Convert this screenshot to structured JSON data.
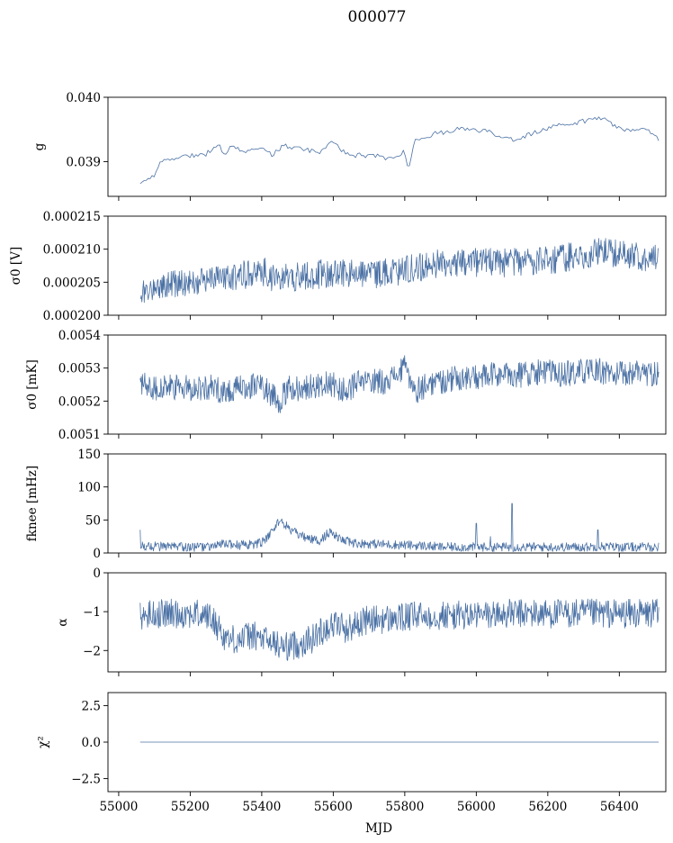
{
  "figure": {
    "title": "000077",
    "xlabel": "MJD"
  },
  "colors": {
    "series": "#4c72a5",
    "axes": "#000000",
    "background": "#ffffff"
  },
  "chart_data": [
    {
      "type": "line",
      "panel": "g",
      "ylabel": "g",
      "ylim": [
        0.03846,
        0.04
      ],
      "yticks": [
        0.039,
        0.04
      ],
      "ytick_labels": [
        "0.039",
        "0.040"
      ],
      "xlim": [
        54970,
        56530
      ],
      "x": [
        55060,
        55080,
        55100,
        55120,
        55150,
        55200,
        55240,
        55280,
        55290,
        55320,
        55360,
        55400,
        55430,
        55460,
        55500,
        55560,
        55590,
        55620,
        55640,
        55680,
        55720,
        55760,
        55800,
        55810,
        55830,
        55860,
        55900,
        55940,
        55990,
        56040,
        56100,
        56140,
        56190,
        56230,
        56280,
        56320,
        56340,
        56360,
        56390,
        56420,
        56450,
        56480,
        56500,
        56510
      ],
      "y": [
        0.03865,
        0.0387,
        0.0388,
        0.039,
        0.03905,
        0.0391,
        0.0391,
        0.0393,
        0.0391,
        0.03925,
        0.03915,
        0.0392,
        0.0391,
        0.03925,
        0.0392,
        0.03915,
        0.0393,
        0.0392,
        0.0391,
        0.0391,
        0.03908,
        0.03905,
        0.03915,
        0.0389,
        0.03935,
        0.0394,
        0.03945,
        0.0395,
        0.0395,
        0.03945,
        0.03935,
        0.0394,
        0.0395,
        0.03955,
        0.0396,
        0.03965,
        0.0397,
        0.03965,
        0.03955,
        0.0395,
        0.0395,
        0.03948,
        0.0394,
        0.03935
      ]
    },
    {
      "type": "line",
      "panel": "sigma0-V",
      "ylabel": "σ0 [V]",
      "ylim": [
        0.0002,
        0.000215
      ],
      "yticks": [
        0.0002,
        0.000205,
        0.00021,
        0.000215
      ],
      "ytick_labels": [
        "0.000200",
        "0.000205",
        "0.000210",
        "0.000215"
      ],
      "xlim": [
        54970,
        56530
      ],
      "noise": 2.2e-06,
      "x": [
        55060,
        55100,
        55150,
        55200,
        55260,
        55330,
        55380,
        55410,
        55420,
        55470,
        55520,
        55580,
        55650,
        55720,
        55780,
        55830,
        55870,
        55900,
        55920,
        55960,
        56000,
        56060,
        56120,
        56180,
        56240,
        56300,
        56340,
        56380,
        56420,
        56460,
        56510
      ],
      "y": [
        0.0002035,
        0.0002042,
        0.0002048,
        0.0002052,
        0.0002055,
        0.000206,
        0.0002063,
        0.0002066,
        0.0002055,
        0.0002057,
        0.000206,
        0.0002063,
        0.0002062,
        0.0002063,
        0.0002066,
        0.0002072,
        0.0002076,
        0.0002078,
        0.000208,
        0.0002081,
        0.000208,
        0.0002079,
        0.000208,
        0.0002083,
        0.0002086,
        0.0002092,
        0.0002095,
        0.0002094,
        0.0002092,
        0.000209,
        0.0002084
      ]
    },
    {
      "type": "line",
      "panel": "sigma0-mK",
      "ylabel": "σ0 [mK]",
      "ylim": [
        0.0051,
        0.0054
      ],
      "yticks": [
        0.0051,
        0.0052,
        0.0053,
        0.0054
      ],
      "ytick_labels": [
        "0.0051",
        "0.0052",
        "0.0053",
        "0.0054"
      ],
      "xlim": [
        54970,
        56530
      ],
      "noise": 4e-05,
      "x": [
        55060,
        55100,
        55150,
        55200,
        55260,
        55300,
        55350,
        55400,
        55430,
        55450,
        55480,
        55520,
        55560,
        55600,
        55630,
        55660,
        55700,
        55740,
        55780,
        55800,
        55830,
        55860,
        55900,
        55950,
        56000,
        56060,
        56120,
        56180,
        56240,
        56300,
        56350,
        56400,
        56450,
        56510
      ],
      "y": [
        0.00526,
        0.00524,
        0.00524,
        0.00524,
        0.00524,
        0.00523,
        0.00524,
        0.00525,
        0.00522,
        0.0052,
        0.00524,
        0.00524,
        0.00525,
        0.00525,
        0.00523,
        0.00525,
        0.00526,
        0.00526,
        0.00528,
        0.0053,
        0.00523,
        0.00525,
        0.00526,
        0.00527,
        0.00527,
        0.00528,
        0.00528,
        0.00529,
        0.00528,
        0.00529,
        0.00529,
        0.00528,
        0.00529,
        0.00528
      ]
    },
    {
      "type": "line",
      "panel": "fknee",
      "ylabel": "fknee [mHz]",
      "ylim": [
        0,
        150
      ],
      "yticks": [
        0,
        50,
        100,
        150
      ],
      "ytick_labels": [
        "0",
        "50",
        "100",
        "150"
      ],
      "xlim": [
        54970,
        56530
      ],
      "noise": 7,
      "x": [
        55060,
        55100,
        55150,
        55200,
        55250,
        55300,
        55340,
        55380,
        55410,
        55430,
        55450,
        55470,
        55500,
        55530,
        55560,
        55590,
        55620,
        55660,
        55700,
        55750,
        55800,
        55850,
        55900,
        55950,
        56000,
        56050,
        56100,
        56150,
        56200,
        56250,
        56300,
        56350,
        56400,
        56450,
        56510
      ],
      "y": [
        10,
        10,
        9,
        9,
        9,
        14,
        12,
        13,
        18,
        35,
        50,
        40,
        28,
        22,
        18,
        32,
        20,
        15,
        14,
        13,
        12,
        11,
        9,
        9,
        9,
        9,
        9,
        9,
        9,
        9,
        9,
        10,
        9,
        9,
        9
      ],
      "spikes": [
        [
          55060,
          35
        ],
        [
          56000,
          45
        ],
        [
          56040,
          25
        ],
        [
          56100,
          75
        ],
        [
          56340,
          35
        ]
      ]
    },
    {
      "type": "line",
      "panel": "alpha",
      "ylabel": "α",
      "ylim": [
        -2.55,
        0
      ],
      "yticks": [
        -2,
        -1,
        0
      ],
      "ytick_labels": [
        "−2",
        "−1",
        "0"
      ],
      "xlim": [
        54970,
        56530
      ],
      "noise": 0.38,
      "x": [
        55060,
        55100,
        55150,
        55200,
        55250,
        55280,
        55300,
        55340,
        55370,
        55400,
        55430,
        55460,
        55500,
        55540,
        55580,
        55610,
        55640,
        55680,
        55720,
        55760,
        55800,
        55850,
        55900,
        55950,
        56000,
        56100,
        56200,
        56300,
        56400,
        56510
      ],
      "y": [
        -1.1,
        -1.05,
        -1.05,
        -1.05,
        -1.1,
        -1.4,
        -1.7,
        -1.7,
        -1.6,
        -1.7,
        -1.8,
        -1.9,
        -1.85,
        -1.7,
        -1.4,
        -1.3,
        -1.45,
        -1.25,
        -1.2,
        -1.2,
        -1.15,
        -1.1,
        -1.1,
        -1.1,
        -1.1,
        -1.05,
        -1.05,
        -1.05,
        -1.05,
        -1.05
      ]
    },
    {
      "type": "line",
      "panel": "chi2",
      "ylabel": "χ²",
      "ylim": [
        -3.4,
        3.4
      ],
      "yticks": [
        -2.5,
        0,
        2.5
      ],
      "ytick_labels": [
        "−2.5",
        "0.0",
        "2.5"
      ],
      "xlim": [
        54970,
        56530
      ],
      "xticks": [
        55000,
        55200,
        55400,
        55600,
        55800,
        56000,
        56200,
        56400
      ],
      "xtick_labels": [
        "55000",
        "55200",
        "55400",
        "55600",
        "55800",
        "56000",
        "56200",
        "56400"
      ],
      "x": [
        55060,
        56510
      ],
      "y": [
        0,
        0
      ]
    }
  ]
}
